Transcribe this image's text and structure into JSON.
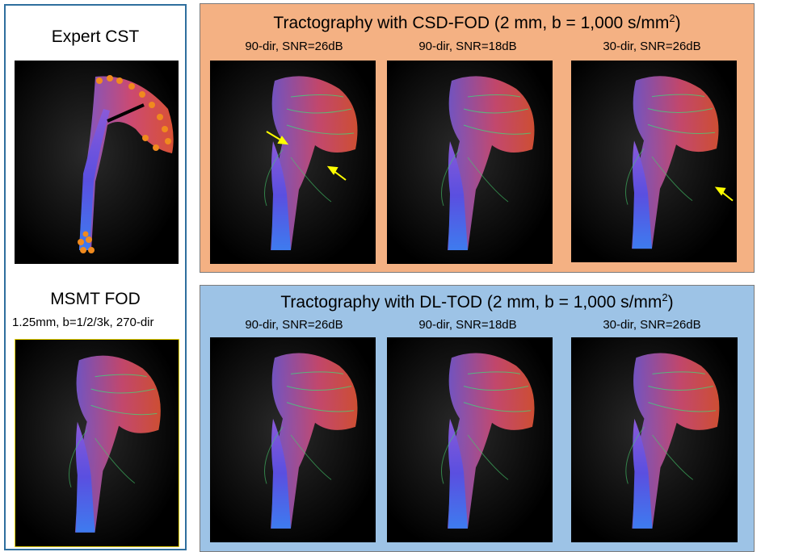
{
  "left": {
    "top_title": "Expert CST",
    "bottom_title": "MSMT FOD",
    "bottom_subtitle": "1.25mm, b=1/2/3k, 270-dir"
  },
  "panels": {
    "csd": {
      "title_main": "Tractography with CSD-FOD (2 mm, b = 1,000 s/mm",
      "title_sup": "2",
      "title_end": ")",
      "conditions": [
        "90-dir, SNR=26dB",
        "90-dir, SNR=18dB",
        "30-dir, SNR=26dB"
      ]
    },
    "dltod": {
      "title_main": "Tractography with DL-TOD (2 mm, b = 1,000 s/mm",
      "title_sup": "2",
      "title_end": ")",
      "conditions": [
        "90-dir, SNR=26dB",
        "90-dir, SNR=18dB",
        "30-dir, SNR=26dB"
      ]
    }
  },
  "colors": {
    "frame_blue": "#2f6f9e",
    "panel_orange": "#f4b183",
    "panel_blue": "#9dc3e6",
    "arrow_yellow": "#ffff00"
  }
}
